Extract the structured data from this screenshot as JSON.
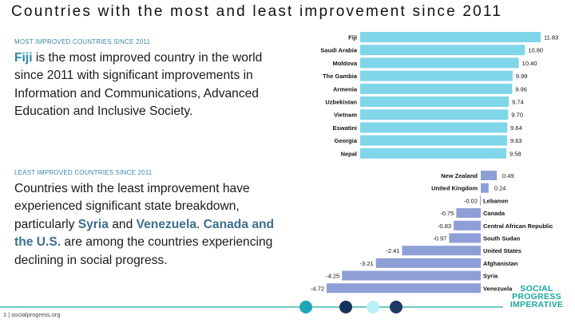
{
  "title": "Countries with the most and least improvement since 2011",
  "most": {
    "label": "MOST IMPROVED COUNTRIES SINCE 2011",
    "hl": "Fiji",
    "text": " is the most improved country in the world since 2011 with significant improvements in Information and Communications, Advanced Education and Inclusive Society."
  },
  "least": {
    "label": "LEAST IMPROVED COUNTRIES SINCE 2011",
    "t1": "Countries with the least improvement have experienced significant state breakdown, particularly ",
    "syria": "Syria",
    "and": " and ",
    "venezuela": "Venezuela",
    "t2": ".  ",
    "canada_us": "Canada and the U.S.",
    "t3": " are among the countries experiencing declining in social progress."
  },
  "footer": "1 | socialprogress.org",
  "logo": {
    "line1": "SOCIAL",
    "line2": "PROGRESS",
    "line3": "IMPERATIVE"
  },
  "colors": {
    "top_bar": "#7fd6e8",
    "bottom_bar": "#8e9ed6",
    "accent": "#2e86ad",
    "logo": "#1aa8a0"
  },
  "chart_data": [
    {
      "type": "bar",
      "orientation": "horizontal",
      "title": "Most improved countries since 2011",
      "categories": [
        "Fiji",
        "Saudi Arabia",
        "Moldova",
        "The Gambia",
        "Armenia",
        "Uzbekistan",
        "Vietnam",
        "Eswatini",
        "Georgia",
        "Nepal"
      ],
      "values": [
        11.83,
        10.8,
        10.4,
        9.99,
        9.96,
        9.74,
        9.7,
        9.64,
        9.63,
        9.58
      ],
      "value_labels": [
        "11.83",
        "10.80",
        "10.40",
        "9.99",
        "9.96",
        "9.74",
        "9.70",
        "9.64",
        "9.63",
        "9.58"
      ],
      "xlim": [
        0,
        11.83
      ]
    },
    {
      "type": "bar",
      "orientation": "horizontal",
      "title": "Least improved countries since 2011",
      "categories": [
        "New Zealand",
        "United Kingdom",
        "Lebanon",
        "Canada",
        "Central African Republic",
        "South Sudan",
        "United States",
        "Afghanistan",
        "Syria",
        "Venezuela"
      ],
      "values": [
        0.49,
        0.24,
        -0.02,
        -0.75,
        -0.83,
        -0.97,
        -2.41,
        -3.21,
        -4.25,
        -4.72
      ],
      "value_labels": [
        "0.49",
        "0.24",
        "-0.02",
        "-0.75",
        "-0.83",
        "-0.97",
        "-2.41",
        "-3.21",
        "-4.25",
        "-4.72"
      ],
      "xlim": [
        -4.72,
        0.49
      ]
    }
  ]
}
